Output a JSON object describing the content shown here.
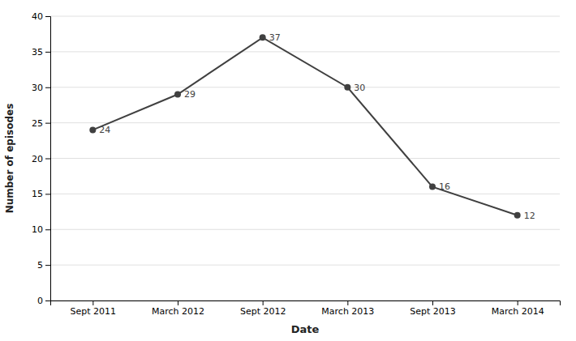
{
  "chart_data": {
    "type": "line",
    "categories": [
      "Sept 2011",
      "March 2012",
      "Sept 2012",
      "March 2013",
      "Sept 2013",
      "March 2014"
    ],
    "values": [
      24,
      29,
      37,
      30,
      16,
      12
    ],
    "xlabel": "Date",
    "ylabel": "Number of episodes",
    "ylim": [
      0,
      40
    ],
    "yticks": [
      0,
      5,
      10,
      15,
      20,
      25,
      30,
      35,
      40
    ],
    "grid": true,
    "data_labels": true,
    "color": "#404040",
    "marker": "circle"
  }
}
